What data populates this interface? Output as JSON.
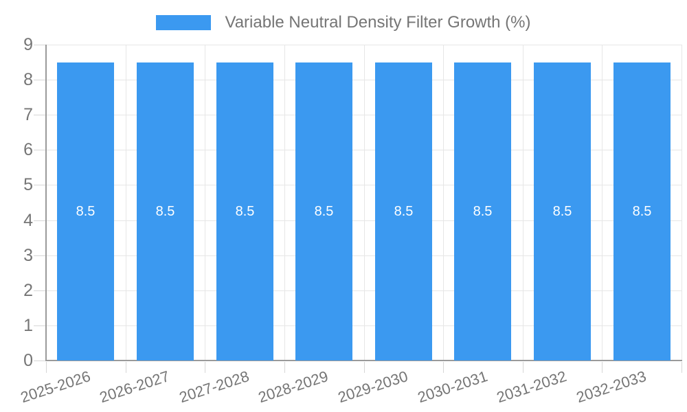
{
  "chart_data": {
    "type": "bar",
    "title": "Variable Neutral Density Filter Growth (%)",
    "legend": {
      "position": "top",
      "label": "Variable Neutral Density Filter Growth (%)"
    },
    "categories": [
      "2025-2026",
      "2026-2027",
      "2027-2028",
      "2028-2029",
      "2029-2030",
      "2030-2031",
      "2031-2032",
      "2032-2033"
    ],
    "values": [
      8.5,
      8.5,
      8.5,
      8.5,
      8.5,
      8.5,
      8.5,
      8.5
    ],
    "xlabel": "",
    "ylabel": "",
    "ylim": [
      0,
      9
    ],
    "yticks": [
      0,
      1,
      2,
      3,
      4,
      5,
      6,
      7,
      8,
      9
    ],
    "grid": true,
    "x_label_rotation_deg": -18,
    "colors": {
      "bar": "#3b99f0",
      "grid": "#e6e6e6",
      "axis": "#9a9a9a",
      "tick": "#d6d6d6",
      "text": "#757575",
      "bar_label": "#ffffff",
      "background": "#ffffff"
    }
  }
}
